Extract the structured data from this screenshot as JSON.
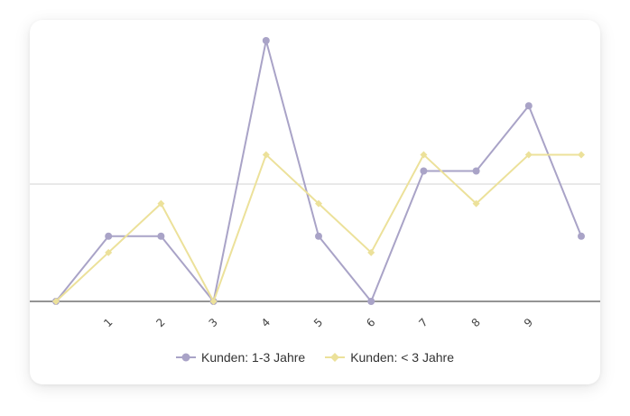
{
  "chart_data": {
    "type": "line",
    "title": "",
    "xlabel": "",
    "ylabel": "",
    "categories": [
      "",
      "1",
      "2",
      "3",
      "4",
      "5",
      "6",
      "7",
      "8",
      "9",
      ""
    ],
    "series": [
      {
        "name": "Kunden: 1-3 Jahre",
        "color": "#a9a3c7",
        "marker": "circle",
        "values": [
          0,
          2,
          2,
          0,
          8,
          2,
          0,
          4,
          4,
          6,
          2
        ]
      },
      {
        "name": "Kunden: < 3 Jahre",
        "color": "#ece19a",
        "marker": "diamond",
        "values": [
          0,
          1.5,
          3,
          0,
          4.5,
          3,
          1.5,
          4.5,
          3,
          4.5,
          4.5
        ]
      }
    ],
    "ylim": [
      0,
      8.3
    ],
    "gridlines_y": [
      3.6
    ],
    "grid": true,
    "legend_position": "bottom"
  }
}
